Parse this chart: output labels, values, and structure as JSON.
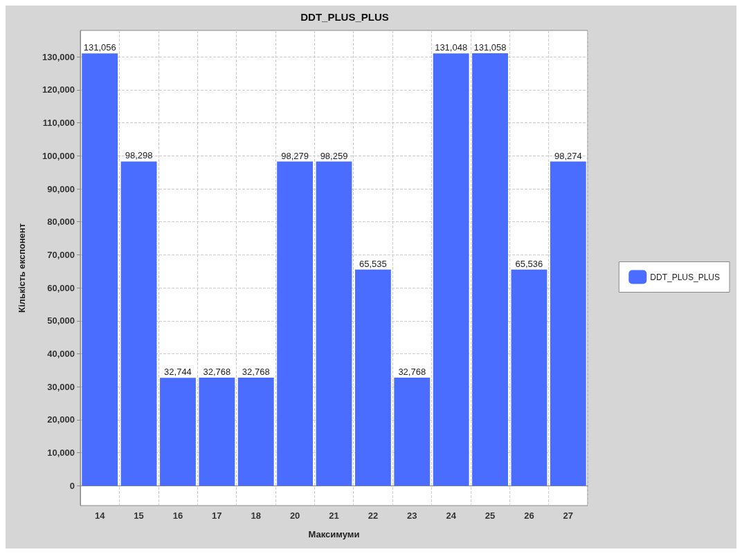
{
  "chart_data": {
    "type": "bar",
    "title": "DDT_PLUS_PLUS",
    "xlabel": "Максимуми",
    "ylabel": "Кількість експонент",
    "categories": [
      "14",
      "15",
      "16",
      "17",
      "18",
      "20",
      "21",
      "22",
      "23",
      "24",
      "25",
      "26",
      "27"
    ],
    "series": [
      {
        "name": "DDT_PLUS_PLUS",
        "color": "#4a6cff",
        "values": [
          131056,
          98298,
          32744,
          32768,
          32768,
          98279,
          98259,
          65535,
          32768,
          131048,
          131058,
          65536,
          98274
        ],
        "value_labels": [
          "131,056",
          "98,298",
          "32,744",
          "32,768",
          "32,768",
          "98,279",
          "98,259",
          "65,535",
          "32,768",
          "131,048",
          "131,058",
          "65,536",
          "98,274"
        ]
      }
    ],
    "ylim": [
      -6000,
      138000
    ],
    "yticks": [
      0,
      {
        "value": 10000,
        "label": "10,000"
      },
      {
        "value": 20000,
        "label": "20,000"
      },
      {
        "value": 30000,
        "label": "30,000"
      },
      {
        "value": 40000,
        "label": "40,000"
      },
      {
        "value": 50000,
        "label": "50,000"
      },
      {
        "value": 60000,
        "label": "60,000"
      },
      {
        "value": 70000,
        "label": "70,000"
      },
      {
        "value": 80000,
        "label": "80,000"
      },
      {
        "value": 90000,
        "label": "90,000"
      },
      {
        "value": 100000,
        "label": "100,000"
      },
      {
        "value": 110000,
        "label": "110,000"
      },
      {
        "value": 120000,
        "label": "120,000"
      },
      {
        "value": 130000,
        "label": "130,000"
      }
    ],
    "grid": true,
    "legend": "right"
  }
}
